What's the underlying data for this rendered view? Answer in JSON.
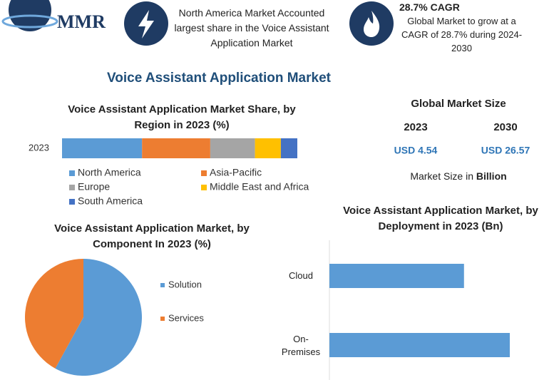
{
  "header": {
    "logo": "MMR",
    "fact": "North America Market Accounted largest share in the Voice Assistant Application Market",
    "cagr_title": "28.7% CAGR",
    "cagr_text": "Global Market to grow at a CAGR of 28.7% during 2024-2030"
  },
  "title": "Voice Assistant Application Market",
  "market_size": {
    "title": "Global Market Size",
    "years": [
      "2023",
      "2030"
    ],
    "values": [
      "USD 4.54",
      "USD 26.57"
    ],
    "note": "Market Size in",
    "note_unit": "Billion"
  },
  "chart_data": [
    {
      "type": "stacked-bar",
      "title": "Voice Assistant Application Market Share, by Region in 2023 (%)",
      "categories": [
        "2023"
      ],
      "series": [
        {
          "name": "North America",
          "color": "#5b9bd5",
          "values": [
            34
          ]
        },
        {
          "name": "Asia-Pacific",
          "color": "#ed7d31",
          "values": [
            29
          ]
        },
        {
          "name": "Europe",
          "color": "#a5a5a5",
          "values": [
            19
          ]
        },
        {
          "name": "Middle East and Africa",
          "color": "#ffc000",
          "values": [
            11
          ]
        },
        {
          "name": "South America",
          "color": "#4472c4",
          "values": [
            7
          ]
        }
      ]
    },
    {
      "type": "pie",
      "title": "Voice Assistant Application Market, by Component In 2023 (%)",
      "categories": [
        "Solution",
        "Services"
      ],
      "values": [
        58,
        42
      ],
      "colors": [
        "#5b9bd5",
        "#ed7d31"
      ]
    },
    {
      "type": "hbar",
      "title": "Voice Assistant Application Market, by Deployment in 2023 (Bn)",
      "categories": [
        "Cloud",
        "On-Premises"
      ],
      "values": [
        1.94,
        2.6
      ],
      "color": "#5b9bd5"
    }
  ]
}
